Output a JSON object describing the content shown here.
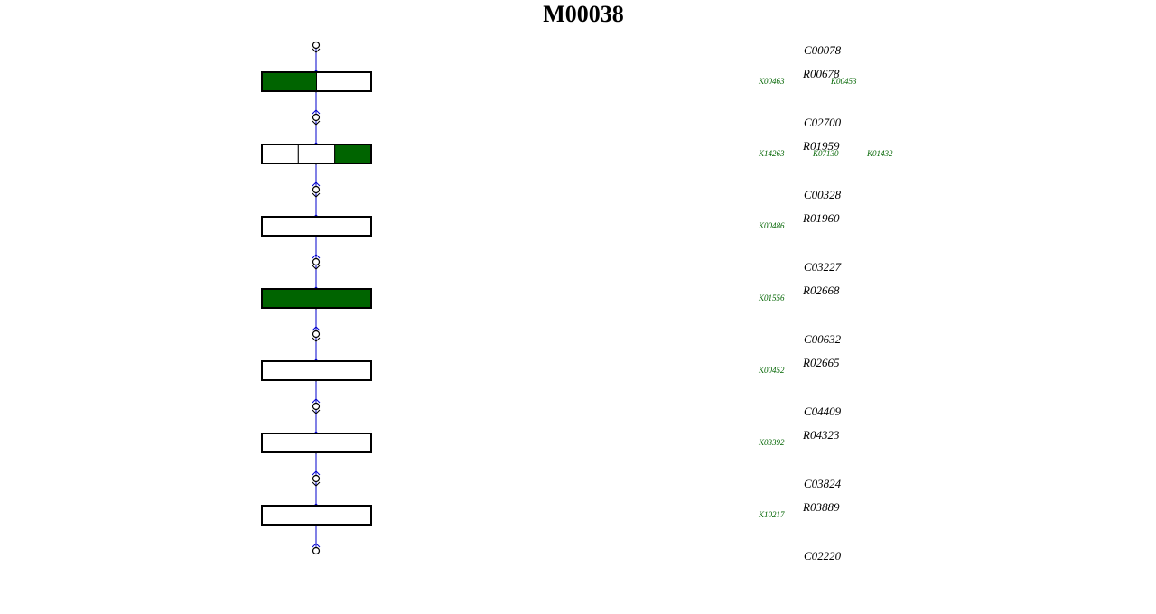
{
  "title": "M00038",
  "compounds": [
    "C00078",
    "C02700",
    "C00328",
    "C03227",
    "C00632",
    "C04409",
    "C03824",
    "C02220"
  ],
  "reactions": [
    {
      "label": "R00678",
      "orthologs": [
        {
          "label": "K00463",
          "filled": true
        },
        {
          "label": "K00453",
          "filled": false
        }
      ]
    },
    {
      "label": "R01959",
      "orthologs": [
        {
          "label": "K14263",
          "filled": false
        },
        {
          "label": "K07130",
          "filled": false
        },
        {
          "label": "K01432",
          "filled": true
        }
      ]
    },
    {
      "label": "R01960",
      "orthologs": [
        {
          "label": "K00486",
          "filled": false
        }
      ]
    },
    {
      "label": "R02668",
      "orthologs": [
        {
          "label": "K01556",
          "filled": true
        }
      ]
    },
    {
      "label": "R02665",
      "orthologs": [
        {
          "label": "K00452",
          "filled": false
        }
      ]
    },
    {
      "label": "R04323",
      "orthologs": [
        {
          "label": "K03392",
          "filled": false
        }
      ]
    },
    {
      "label": "R03889",
      "orthologs": [
        {
          "label": "K10217",
          "filled": false
        }
      ]
    }
  ]
}
